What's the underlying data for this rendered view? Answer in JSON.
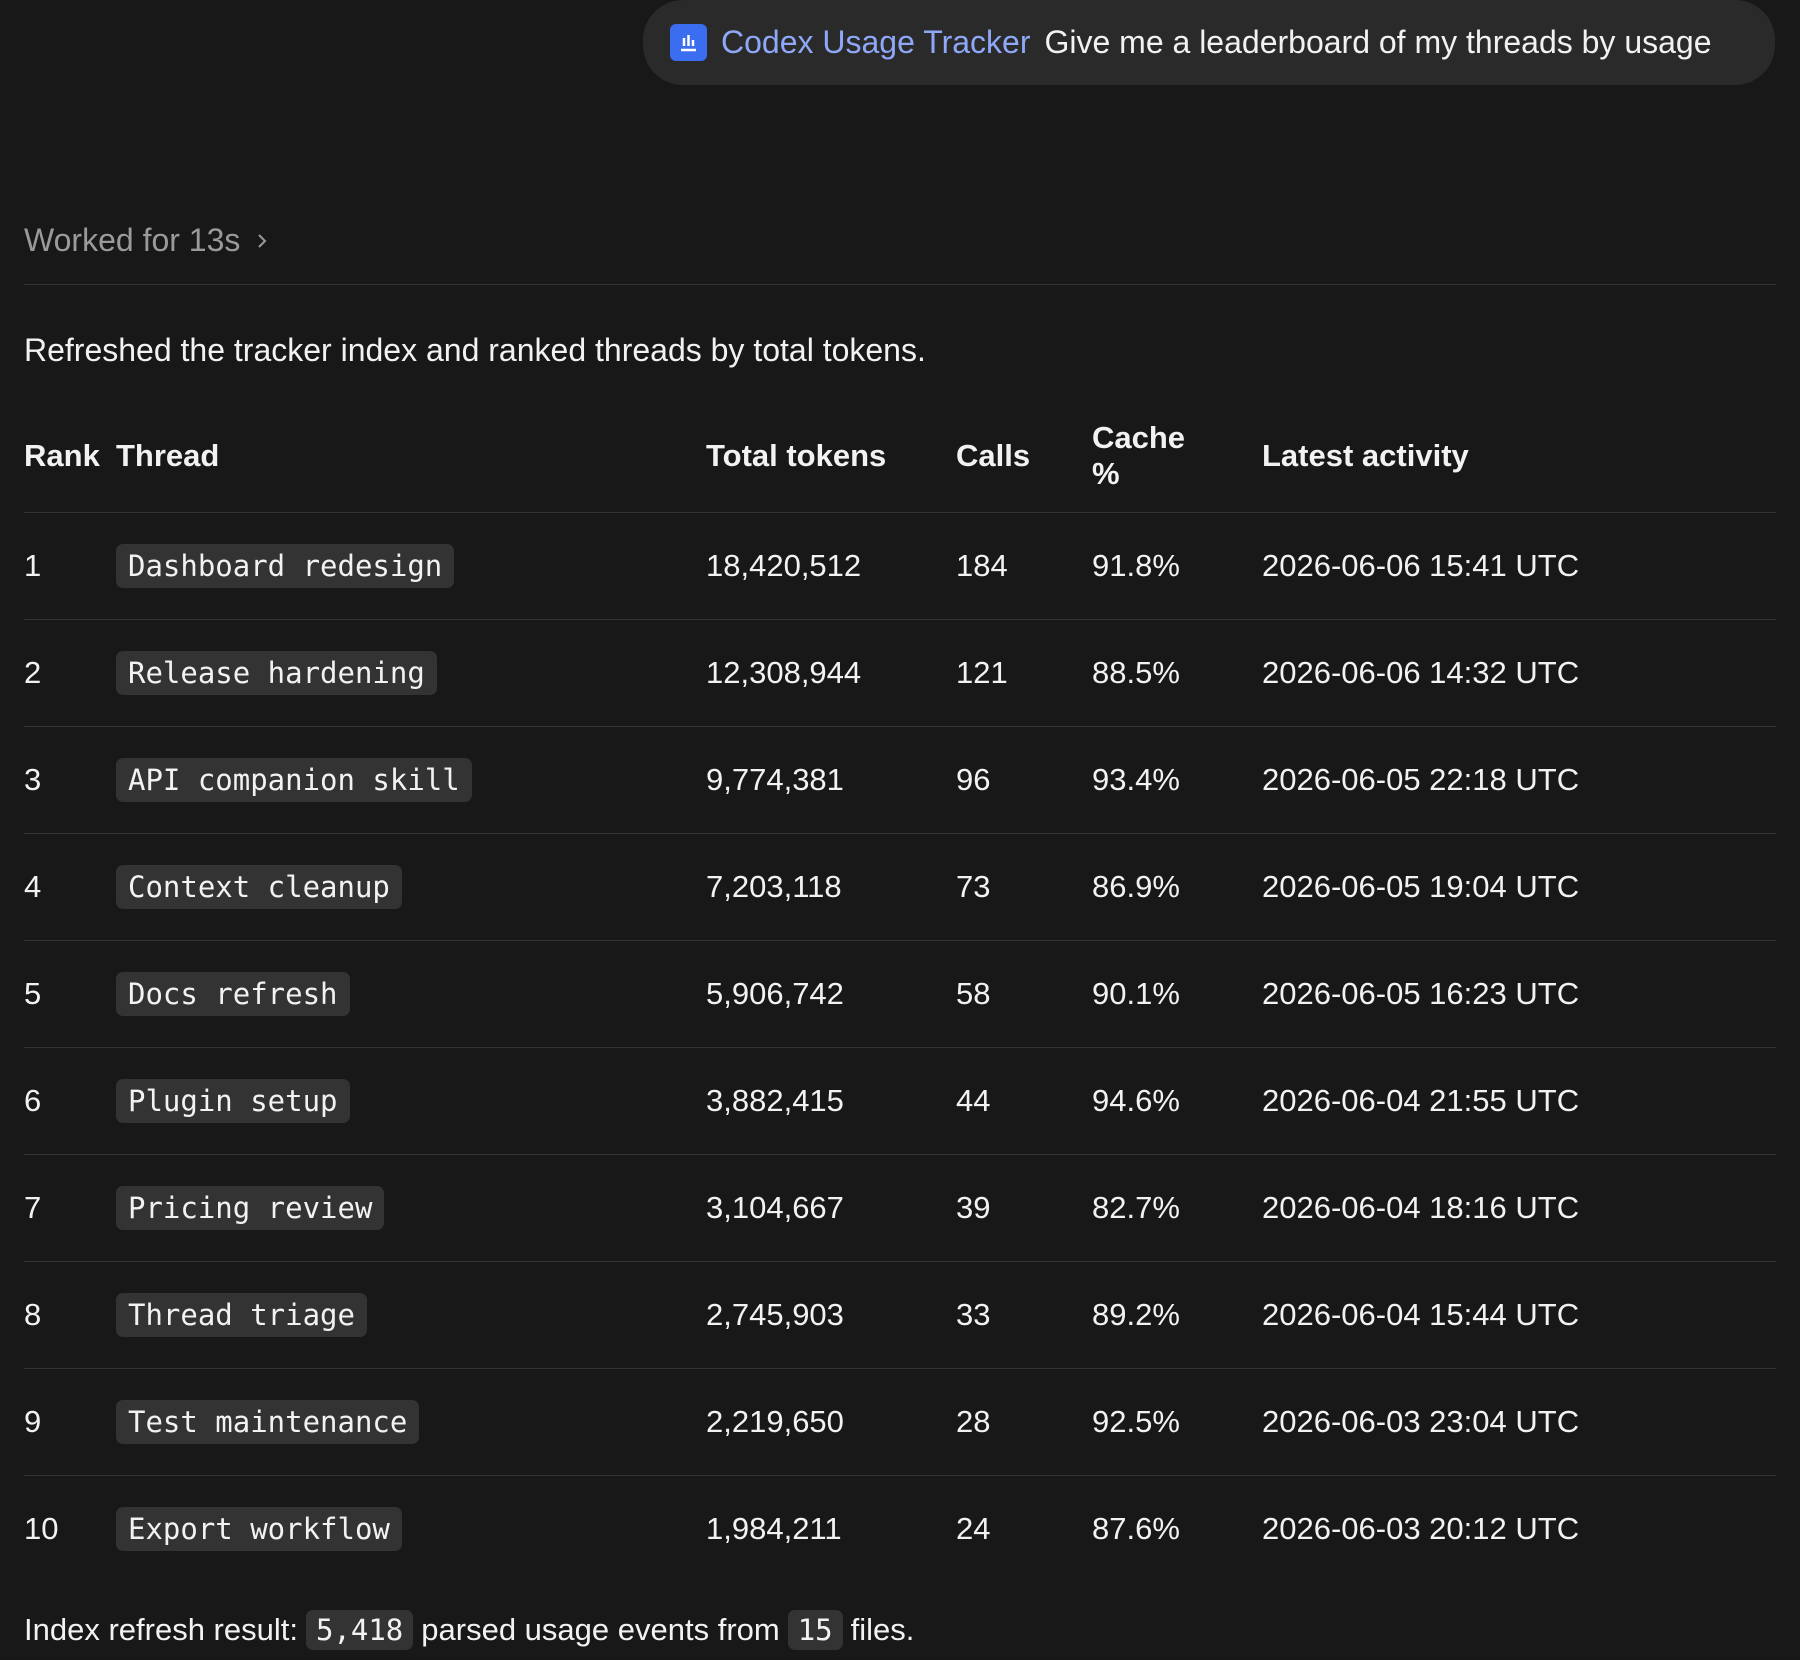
{
  "header": {
    "app": "Codex Usage Tracker",
    "prompt": "Give me a leaderboard of my threads by usage"
  },
  "status": "Worked for 13s",
  "summary": "Refreshed the tracker index and ranked threads by total tokens.",
  "table": {
    "columns": [
      "Rank",
      "Thread",
      "Total tokens",
      "Calls",
      "Cache %",
      "Latest activity"
    ],
    "rows": [
      [
        "1",
        "Dashboard redesign",
        "18,420,512",
        "184",
        "91.8%",
        "2026-06-06 15:41 UTC"
      ],
      [
        "2",
        "Release hardening",
        "12,308,944",
        "121",
        "88.5%",
        "2026-06-06 14:32 UTC"
      ],
      [
        "3",
        "API companion skill",
        "9,774,381",
        "96",
        "93.4%",
        "2026-06-05 22:18 UTC"
      ],
      [
        "4",
        "Context cleanup",
        "7,203,118",
        "73",
        "86.9%",
        "2026-06-05 19:04 UTC"
      ],
      [
        "5",
        "Docs refresh",
        "5,906,742",
        "58",
        "90.1%",
        "2026-06-05 16:23 UTC"
      ],
      [
        "6",
        "Plugin setup",
        "3,882,415",
        "44",
        "94.6%",
        "2026-06-04 21:55 UTC"
      ],
      [
        "7",
        "Pricing review",
        "3,104,667",
        "39",
        "82.7%",
        "2026-06-04 18:16 UTC"
      ],
      [
        "8",
        "Thread triage",
        "2,745,903",
        "33",
        "89.2%",
        "2026-06-04 15:44 UTC"
      ],
      [
        "9",
        "Test maintenance",
        "2,219,650",
        "28",
        "92.5%",
        "2026-06-03 23:04 UTC"
      ],
      [
        "10",
        "Export workflow",
        "1,984,211",
        "24",
        "87.6%",
        "2026-06-03 20:12 UTC"
      ]
    ]
  },
  "footer": {
    "prefix": "Index refresh result:",
    "events": "5,418",
    "middle": "parsed usage events from",
    "files": "15",
    "suffix": "files."
  }
}
